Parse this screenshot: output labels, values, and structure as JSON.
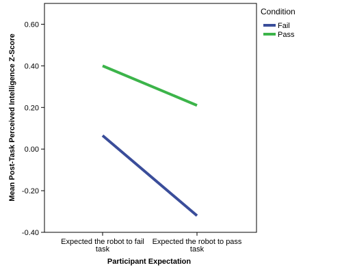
{
  "chart_data": {
    "type": "line",
    "title": "",
    "xlabel": "Participant Expectation",
    "ylabel": "Mean Post-Task  Perceived Intelligence Z-Score",
    "categories": [
      [
        "Expected the robot to fail",
        "task"
      ],
      [
        "Expected the robot to pass",
        "task"
      ]
    ],
    "series": [
      {
        "name": "Fail",
        "color": "#3a4d9a",
        "values": [
          0.065,
          -0.32
        ]
      },
      {
        "name": "Pass",
        "color": "#3cb44a",
        "values": [
          0.4,
          0.21
        ]
      }
    ],
    "ylim": [
      -0.4,
      0.7
    ],
    "yticks": [
      0.6,
      0.4,
      0.2,
      0.0,
      -0.2,
      -0.4
    ],
    "ytick_labels": [
      "0.60",
      "0.40",
      "0.20",
      "0.00",
      "-0.20",
      "-0.40"
    ],
    "grid": false,
    "legend": {
      "title": "Condition",
      "position": "right"
    }
  }
}
